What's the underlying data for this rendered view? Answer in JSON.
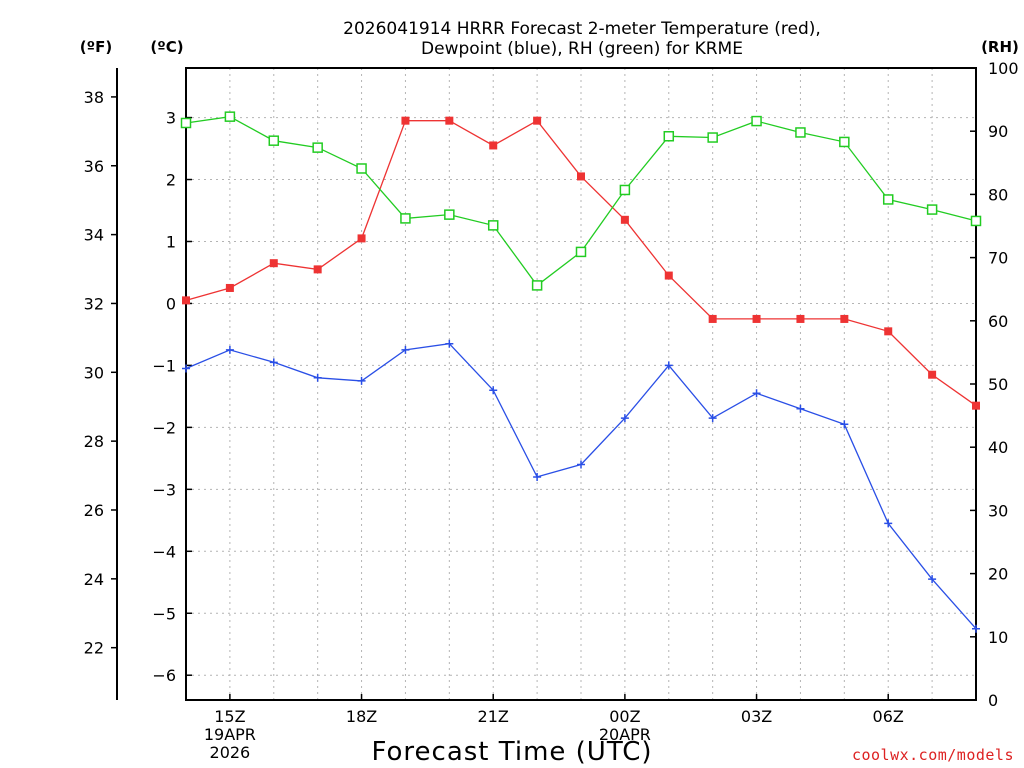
{
  "chart_data": {
    "type": "line",
    "title_lines": [
      "2026041914 HRRR Forecast 2-meter Temperature (red),",
      "Dewpoint (blue), RH (green) for KRME"
    ],
    "xlabel": "Forecast Time (UTC)",
    "credit": "coolwx.com/models",
    "axes": {
      "fahrenheit": {
        "unit_label": "(ºF)",
        "ticks": [
          22,
          24,
          26,
          28,
          30,
          32,
          34,
          36,
          38
        ]
      },
      "celsius": {
        "unit_label": "(ºC)",
        "ylim": [
          -6.4,
          3.8
        ],
        "ticks": [
          -6,
          -5,
          -4,
          -3,
          -2,
          -1,
          0,
          1,
          2,
          3
        ]
      },
      "rh": {
        "unit_label": "(RH)",
        "ylim": [
          0,
          100
        ],
        "ticks": [
          0,
          10,
          20,
          30,
          40,
          50,
          60,
          70,
          80,
          90,
          100
        ]
      }
    },
    "x": {
      "hours": [
        14,
        15,
        16,
        17,
        18,
        19,
        20,
        21,
        22,
        23,
        24,
        25,
        26,
        27,
        28,
        29,
        30,
        31,
        32
      ],
      "tick_labels": [
        {
          "hour": 15,
          "lines": [
            "15Z",
            "19APR",
            "2026"
          ]
        },
        {
          "hour": 18,
          "lines": [
            "18Z"
          ]
        },
        {
          "hour": 21,
          "lines": [
            "21Z"
          ]
        },
        {
          "hour": 24,
          "lines": [
            "00Z",
            "20APR"
          ]
        },
        {
          "hour": 27,
          "lines": [
            "03Z"
          ]
        },
        {
          "hour": 30,
          "lines": [
            "06Z"
          ]
        }
      ]
    },
    "series": [
      {
        "name": "2-meter Temperature",
        "axis": "celsius",
        "color": "#ee3333",
        "marker": "filled-square",
        "values": [
          0.05,
          0.25,
          0.65,
          0.55,
          1.05,
          2.95,
          2.95,
          2.55,
          2.95,
          2.05,
          1.35,
          0.45,
          -0.25,
          -0.25,
          -0.25,
          -0.25,
          -0.45,
          -1.15,
          -1.65
        ]
      },
      {
        "name": "Dewpoint",
        "axis": "celsius",
        "color": "#2a4fe6",
        "marker": "plus",
        "values": [
          -1.05,
          -0.75,
          -0.95,
          -1.2,
          -1.25,
          -0.75,
          -0.65,
          -1.4,
          -2.8,
          -2.6,
          -1.85,
          -1.0,
          -1.85,
          -1.45,
          -1.7,
          -1.95,
          -3.55,
          -4.45,
          -5.25
        ]
      },
      {
        "name": "RH",
        "axis": "rh",
        "color": "#22cc22",
        "marker": "open-square",
        "values": [
          91.3,
          92.3,
          88.5,
          87.4,
          84.1,
          76.2,
          76.8,
          75.1,
          65.6,
          70.9,
          80.7,
          89.2,
          89.0,
          91.6,
          89.8,
          88.3,
          79.2,
          77.6,
          75.8
        ]
      }
    ]
  }
}
